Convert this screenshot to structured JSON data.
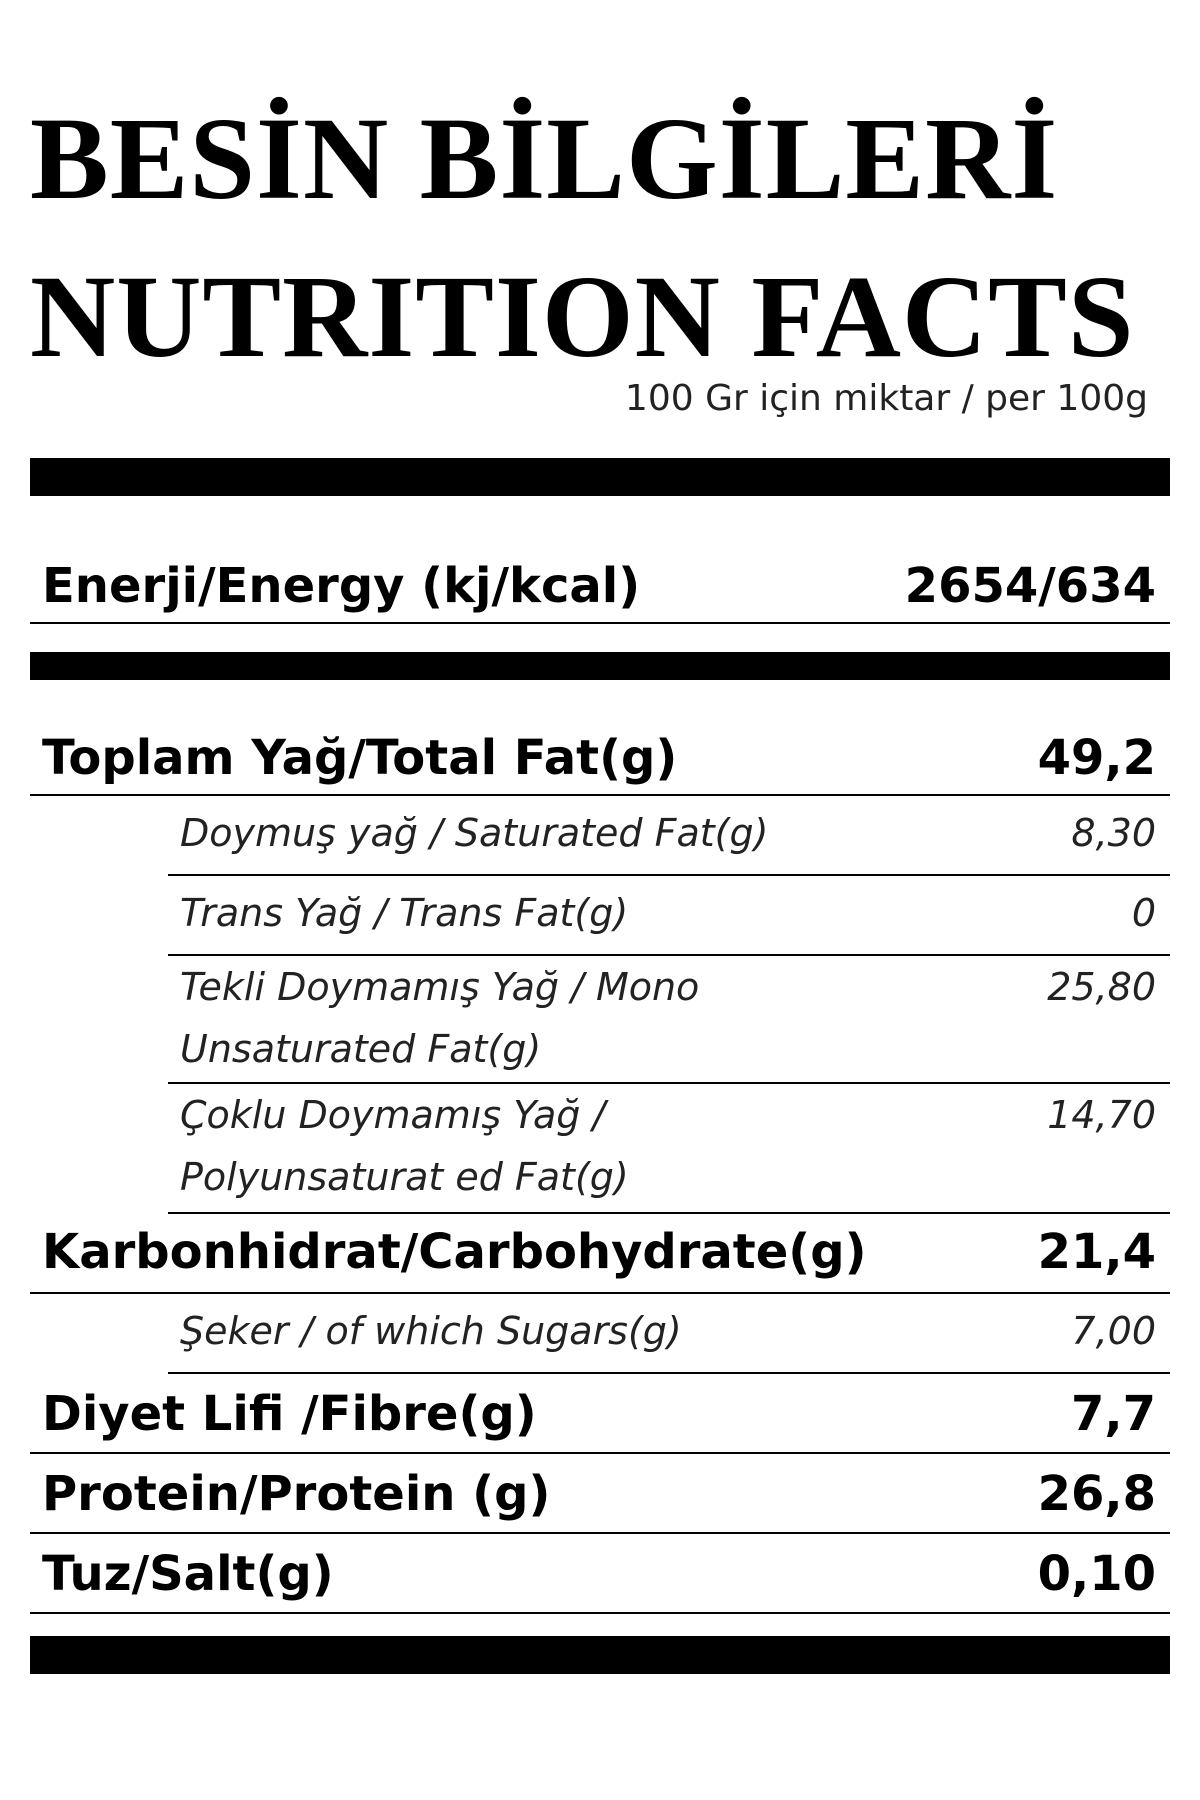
{
  "title_tr": "BESİN BİLGİLERİ",
  "title_en": "NUTRITION FACTS",
  "serving": "100 Gr için miktar / per 100g",
  "rows": [
    {
      "name": "Enerji/Energy (kj/kcal)",
      "value": "2654/634"
    },
    {
      "name": "Toplam Yağ/Total Fat(g)",
      "value": "49,2"
    },
    {
      "name": "Doymuş yağ / Saturated Fat(g)",
      "value": "8,30"
    },
    {
      "name": "Trans Yağ / Trans Fat(g)",
      "value": "0"
    },
    {
      "name": "Tekli Doymamış Yağ / Mono Unsaturated Fat(g)",
      "value": "25,80"
    },
    {
      "name": "Çoklu Doymamış Yağ / Polyunsaturat ed Fat(g)",
      "value": "14,70"
    },
    {
      "name": "Karbonhidrat/Carbohydrate(g)",
      "value": "21,4"
    },
    {
      "name": "Şeker / of which Sugars(g)",
      "value": "7,00"
    },
    {
      "name": "Diyet Lifi /Fibre(g)",
      "value": "7,7"
    },
    {
      "name": "Protein/Protein (g)",
      "value": "26,8"
    },
    {
      "name": "Tuz/Salt(g)",
      "value": "0,10"
    }
  ]
}
